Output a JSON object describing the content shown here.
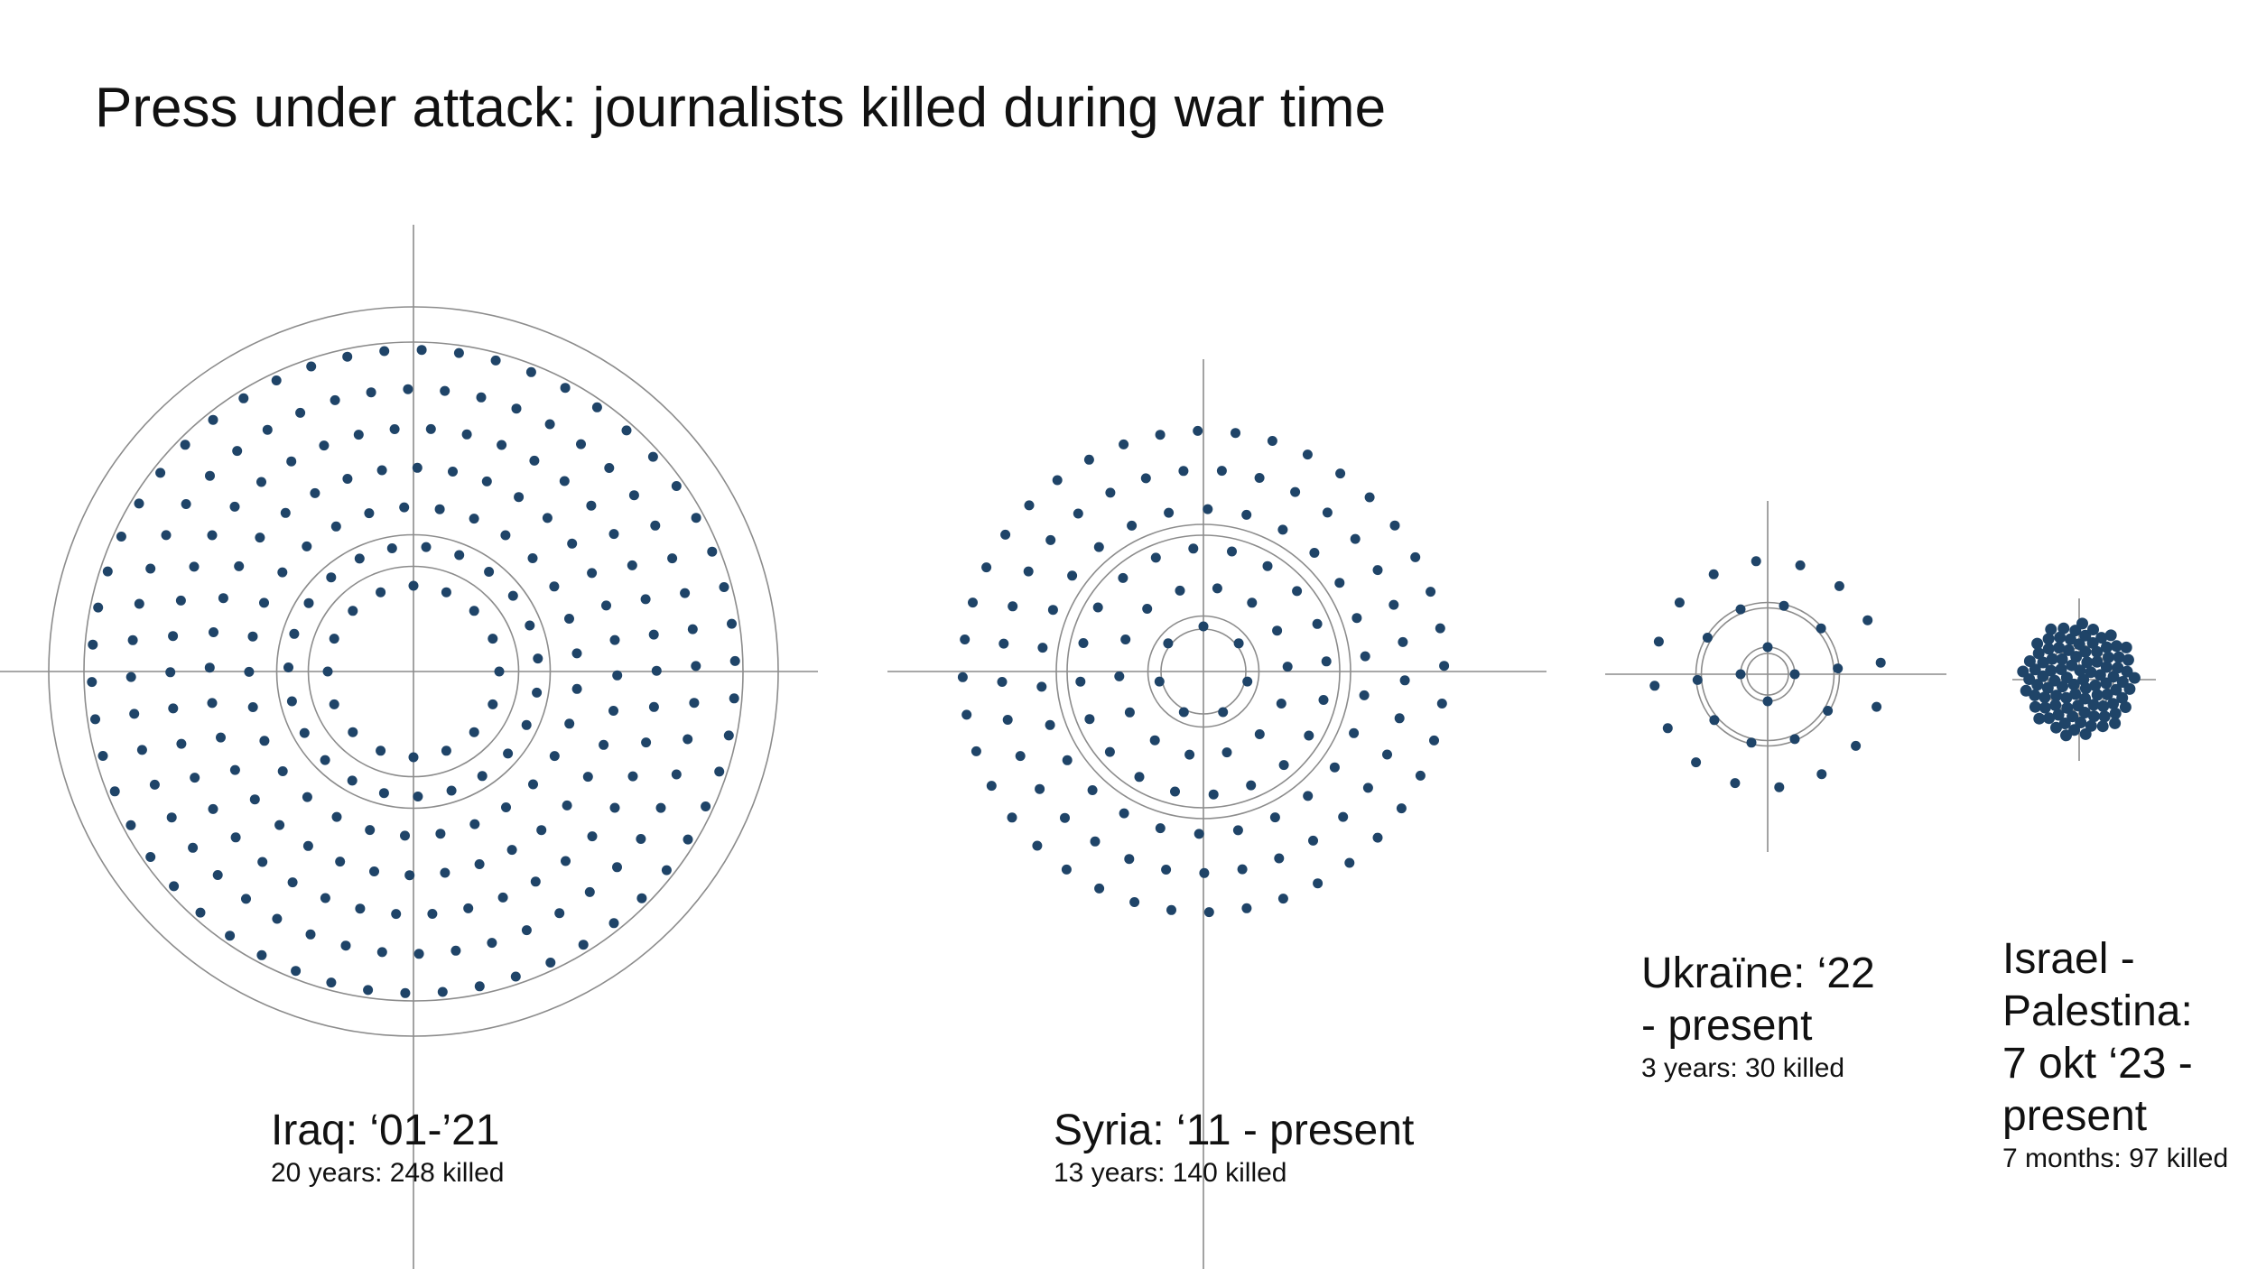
{
  "title": "Press under attack: journalists killed during war time",
  "chart_data": {
    "type": "scatter",
    "subtype": "radial dot plot (one dot per journalist killed)",
    "title": "Press under attack: journalists killed during war time",
    "colors": {
      "dot": "#1f4468",
      "rings": "#8c8c8c",
      "crosshair": "#8c8c8c"
    },
    "grid": false,
    "legend": "none",
    "series": [
      {
        "name": "Iraq: ‘01-’21",
        "caption": "20 years: 248 killed",
        "years": 20,
        "killed": 248
      },
      {
        "name": "Syria: ‘11 - present",
        "caption": "13 years: 140 killed",
        "years": 13,
        "killed": 140
      },
      {
        "name": "Ukraïne: ‘22\n- present",
        "caption": "3 years: 30 killed",
        "years": 3,
        "killed": 30
      },
      {
        "name": "Israel -\nPalestina:\n7 okt ‘23 -\npresent",
        "caption": "7 months: 97 killed",
        "months": 7,
        "killed": 97
      }
    ]
  }
}
